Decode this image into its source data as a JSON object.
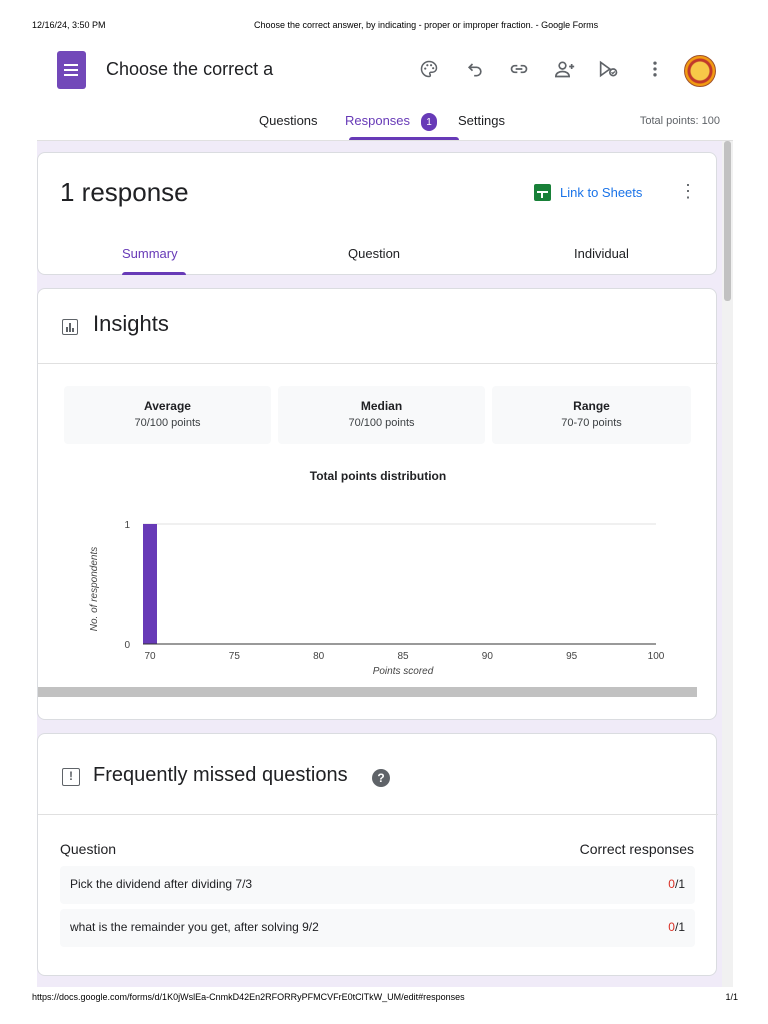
{
  "print": {
    "datetime": "12/16/24, 3:50 PM",
    "page_title": "Choose the correct answer, by indicating - proper or improper fraction. - Google Forms",
    "url": "https://docs.google.com/forms/d/1K0jWslEa-CnmkD42En2RFORRyPFMCVFrE0tClTkW_UM/edit#responses",
    "page_num": "1/1"
  },
  "header": {
    "form_title": "Choose the correct answer, by indicating - proper or improper fraction.",
    "icons": [
      "palette-icon",
      "undo-icon",
      "link-icon",
      "add-collaborator-icon",
      "preview-icon",
      "more-vert-icon",
      "avatar"
    ]
  },
  "tabs": {
    "questions": "Questions",
    "responses": "Responses",
    "responses_badge": "1",
    "settings": "Settings",
    "total_points": "Total points: 100"
  },
  "responses": {
    "count_label": "1 response",
    "link_sheets": "Link to Sheets",
    "subtabs": {
      "summary": "Summary",
      "question": "Question",
      "individual": "Individual"
    }
  },
  "insights": {
    "title": "Insights",
    "stats": [
      {
        "label": "Average",
        "value": "70/100 points"
      },
      {
        "label": "Median",
        "value": "70/100 points"
      },
      {
        "label": "Range",
        "value": "70-70 points"
      }
    ]
  },
  "chart_data": {
    "type": "bar",
    "title": "Total points distribution",
    "xlabel": "Points scored",
    "ylabel": "No. of respondents",
    "x": [
      70
    ],
    "values": [
      1
    ],
    "xlim": [
      70,
      100
    ],
    "ylim": [
      0,
      1
    ],
    "x_ticks": [
      70,
      75,
      80,
      85,
      90,
      95,
      100
    ],
    "y_ticks": [
      0,
      1
    ],
    "bar_color": "#673ab7",
    "grid": true
  },
  "missed": {
    "title": "Frequently missed questions",
    "col_question": "Question",
    "col_correct": "Correct responses",
    "rows": [
      {
        "question": "Pick the dividend after dividing 7/3",
        "correct": "0",
        "total": "/1"
      },
      {
        "question": "what is the remainder you get, after solving 9/2",
        "correct": "0",
        "total": "/1"
      }
    ]
  },
  "colors": {
    "accent": "#673ab7",
    "background": "#f0ebf8",
    "link": "#1a73e8",
    "error": "#d93025",
    "sheets": "#188038"
  }
}
